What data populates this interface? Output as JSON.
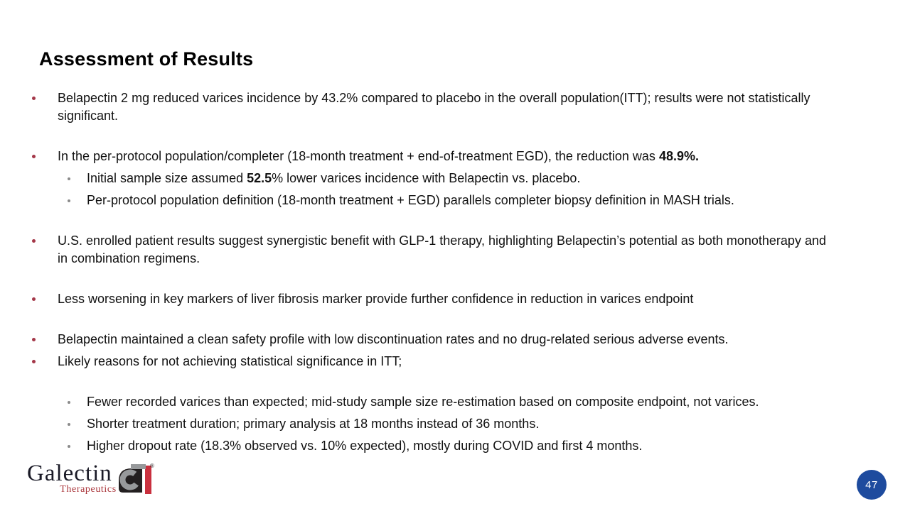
{
  "slide": {
    "title": "Assessment of Results",
    "page_number": "47"
  },
  "colors": {
    "background": "#FFFFFF",
    "bullet_primary": "#A43748",
    "bullet_secondary": "#8A8A8A",
    "body_text": "#111111",
    "page_circle_blue": "#1E4B9E",
    "logo_black": "#231F20",
    "logo_gray": "#97999B",
    "logo_red": "#C9303E",
    "logo_name_color": "#1A1A26",
    "logo_sub_color": "#A93439"
  },
  "bullets": [
    {
      "level": 1,
      "gap": "para",
      "runs": [
        {
          "t": "Belapectin 2 mg reduced varices incidence by 43.2% compared to placebo in the overall population(ITT); results were not statistically significant."
        }
      ]
    },
    {
      "level": 1,
      "gap": "para",
      "runs": [
        {
          "t": "In the per-protocol population/completer (18-month treatment + end-of-treatment EGD), the reduction was "
        },
        {
          "t": "48.9%.",
          "b": true
        }
      ]
    },
    {
      "level": 2,
      "gap": "line",
      "runs": [
        {
          "t": "Initial sample size assumed "
        },
        {
          "t": "52.5",
          "b": true
        },
        {
          "t": "% lower varices incidence with Belapectin vs. placebo."
        }
      ]
    },
    {
      "level": 2,
      "gap": "line",
      "runs": [
        {
          "t": "Per-protocol population definition (18-month treatment + EGD) parallels completer biopsy definition in MASH trials."
        }
      ]
    },
    {
      "level": 1,
      "gap": "para",
      "runs": [
        {
          "t": "U.S. enrolled patient results suggest synergistic benefit with GLP-1 therapy, highlighting Belapectin’s potential as both monotherapy and in combination regimens."
        }
      ]
    },
    {
      "level": 1,
      "gap": "para",
      "runs": [
        {
          "t": "Less worsening in key markers of liver fibrosis marker provide further confidence in reduction in varices endpoint"
        }
      ]
    },
    {
      "level": 1,
      "gap": "para",
      "runs": [
        {
          "t": "Belapectin maintained a clean safety profile with low discontinuation rates and no drug-related serious adverse events."
        }
      ]
    },
    {
      "level": 1,
      "gap": "line",
      "runs": [
        {
          "t": "Likely reasons for not achieving statistical significance in ITT;"
        }
      ]
    },
    {
      "level": 2,
      "gap": "para",
      "runs": [
        {
          "t": "Fewer recorded varices than expected; mid-study sample size re-estimation based on composite endpoint, not varices."
        }
      ]
    },
    {
      "level": 2,
      "gap": "line",
      "runs": [
        {
          "t": "Shorter treatment duration; primary analysis at 18 months instead of 36 months."
        }
      ]
    },
    {
      "level": 2,
      "gap": "line",
      "runs": [
        {
          "t": "Higher dropout rate (18.3% observed vs. 10% expected), mostly during COVID and first 4 months."
        }
      ]
    }
  ],
  "logo": {
    "name": "Galectin",
    "subname": "Therapeutics",
    "registered": "®"
  }
}
